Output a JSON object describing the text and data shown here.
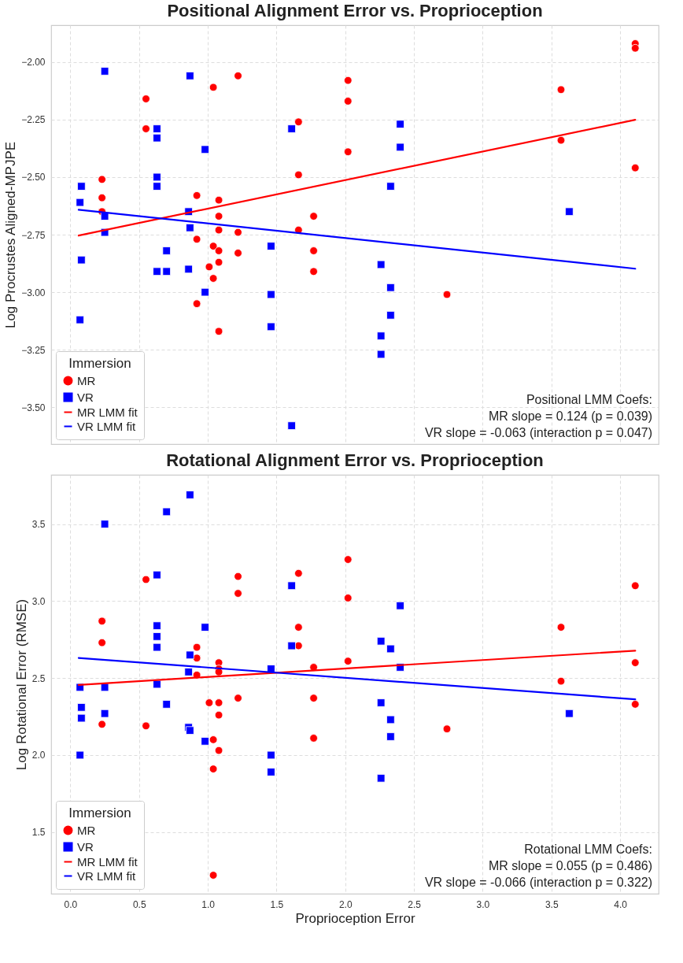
{
  "chart_data": [
    {
      "type": "scatter",
      "title": "Positional Alignment Error vs. Proprioception",
      "ylabel": "Log Procrustes Aligned-MPJPE",
      "legend_title": "Immersion",
      "legend": "bottom left",
      "grid": true,
      "tick_labels": "y",
      "xlim": [
        -0.14,
        4.28
      ],
      "ylim": [
        -3.66,
        -1.84
      ],
      "xticks": [
        0,
        0.5,
        1,
        1.5,
        2,
        2.5,
        3,
        3.5,
        4
      ],
      "yticks": [
        {
          "value": -3.5,
          "label": "−3.50"
        },
        {
          "value": -3.25,
          "label": "−3.25"
        },
        {
          "value": -3,
          "label": "−3.00"
        },
        {
          "value": -2.75,
          "label": "−2.75"
        },
        {
          "value": -2.5,
          "label": "−2.50"
        },
        {
          "value": -2.25,
          "label": "−2.25"
        },
        {
          "value": -2,
          "label": "−2.00"
        }
      ],
      "series": [
        {
          "name": "MR",
          "type": "scatter",
          "marker": "circle",
          "color": "#ff0000",
          "x": [
            1.04,
            1.22,
            0.55,
            2.02,
            2.02,
            1.66,
            0.55,
            2.02,
            1.66,
            0.23,
            0.23,
            0.23,
            0.92,
            1.08,
            1.08,
            1.77,
            1.08,
            1.22,
            1.66,
            0.92,
            1.04,
            1.08,
            1.22,
            1.77,
            1.08,
            1.01,
            1.04,
            1.77,
            0.92,
            1.08,
            4.11,
            4.11,
            3.57,
            3.57,
            4.11,
            2.74
          ],
          "values": [
            -2.11,
            -2.06,
            -2.16,
            -2.08,
            -2.17,
            -2.26,
            -2.29,
            -2.39,
            -2.49,
            -2.51,
            -2.59,
            -2.65,
            -2.58,
            -2.6,
            -2.67,
            -2.67,
            -2.73,
            -2.74,
            -2.73,
            -2.77,
            -2.8,
            -2.82,
            -2.83,
            -2.82,
            -2.87,
            -2.89,
            -2.94,
            -2.91,
            -3.05,
            -3.17,
            -1.92,
            -1.94,
            -2.12,
            -2.34,
            -2.46,
            -3.01
          ]
        },
        {
          "name": "VR",
          "type": "scatter",
          "marker": "square",
          "color": "#0000ff",
          "x": [
            0.25,
            0.87,
            0.63,
            0.63,
            1.61,
            0.98,
            0.08,
            0.63,
            0.63,
            0.07,
            0.25,
            0.86,
            0.87,
            0.25,
            0.7,
            1.46,
            0.08,
            0.63,
            0.7,
            0.86,
            0.98,
            1.46,
            0.07,
            1.46,
            1.61,
            2.4,
            2.4,
            2.33,
            3.63,
            2.26,
            2.33,
            2.33,
            2.26,
            2.26
          ],
          "values": [
            -2.04,
            -2.06,
            -2.29,
            -2.33,
            -2.29,
            -2.38,
            -2.54,
            -2.5,
            -2.54,
            -2.61,
            -2.67,
            -2.65,
            -2.72,
            -2.74,
            -2.82,
            -2.8,
            -2.86,
            -2.91,
            -2.91,
            -2.9,
            -3.0,
            -3.01,
            -3.12,
            -3.15,
            -3.58,
            -2.27,
            -2.37,
            -2.54,
            -2.65,
            -2.88,
            -2.98,
            -3.1,
            -3.19,
            -3.27
          ]
        },
        {
          "name": "MR LMM fit",
          "type": "line",
          "line_style": "solid",
          "color": "#ff0000",
          "x": [
            0.06,
            4.11
          ],
          "values": [
            -2.754,
            -2.251
          ]
        },
        {
          "name": "VR LMM fit",
          "type": "line",
          "line_style": "solid",
          "color": "#0000ff",
          "x": [
            0.06,
            4.11
          ],
          "values": [
            -2.642,
            -2.898
          ]
        }
      ],
      "annotations": [
        "Positional LMM Coefs:",
        "MR slope = 0.124 (p = 0.039)",
        "VR slope = -0.063 (interaction p = 0.047)"
      ]
    },
    {
      "type": "scatter",
      "title": "Rotational Alignment Error vs. Proprioception",
      "xlabel": "Proprioception Error",
      "ylabel": "Log Rotational Error (RMSE)",
      "legend_title": "Immersion",
      "legend": "bottom left",
      "grid": true,
      "xlim": [
        -0.14,
        4.28
      ],
      "ylim": [
        1.1,
        3.82
      ],
      "xticks": [
        {
          "value": 0,
          "label": "0.0"
        },
        {
          "value": 0.5,
          "label": "0.5"
        },
        {
          "value": 1,
          "label": "1.0"
        },
        {
          "value": 1.5,
          "label": "1.5"
        },
        {
          "value": 2,
          "label": "2.0"
        },
        {
          "value": 2.5,
          "label": "2.5"
        },
        {
          "value": 3,
          "label": "3.0"
        },
        {
          "value": 3.5,
          "label": "3.5"
        },
        {
          "value": 4,
          "label": "4.0"
        }
      ],
      "yticks": [
        1.5,
        {
          "value": 2,
          "label": "2.0"
        },
        2.5,
        {
          "value": 3,
          "label": "3.0"
        },
        3.5
      ],
      "series": [
        {
          "name": "MR",
          "type": "scatter",
          "marker": "circle",
          "color": "#ff0000",
          "x": [
            0.55,
            0.23,
            0.23,
            1.22,
            1.22,
            1.66,
            2.02,
            2.02,
            1.66,
            1.66,
            0.92,
            0.92,
            1.08,
            1.08,
            1.08,
            0.92,
            1.77,
            2.02,
            1.22,
            1.77,
            1.01,
            1.08,
            1.08,
            0.23,
            0.55,
            1.77,
            1.04,
            1.08,
            1.04,
            1.04,
            4.11,
            3.57,
            4.11,
            3.57,
            4.11,
            2.74
          ],
          "values": [
            3.14,
            2.87,
            2.73,
            3.16,
            3.05,
            3.18,
            3.27,
            3.02,
            2.83,
            2.71,
            2.7,
            2.63,
            2.6,
            2.56,
            2.54,
            2.52,
            2.57,
            2.61,
            2.37,
            2.37,
            2.34,
            2.34,
            2.26,
            2.2,
            2.19,
            2.11,
            2.1,
            2.03,
            1.91,
            1.22,
            3.1,
            2.83,
            2.6,
            2.48,
            2.33,
            2.17
          ]
        },
        {
          "name": "VR",
          "type": "scatter",
          "marker": "square",
          "color": "#0000ff",
          "x": [
            0.87,
            0.7,
            0.25,
            0.63,
            1.61,
            0.63,
            0.63,
            0.98,
            0.63,
            1.61,
            0.87,
            0.86,
            1.46,
            0.07,
            0.25,
            0.63,
            0.7,
            0.08,
            0.08,
            0.25,
            0.86,
            0.87,
            0.98,
            0.07,
            1.46,
            1.46,
            2.4,
            2.26,
            2.33,
            2.4,
            2.26,
            2.33,
            2.33,
            2.26,
            3.63
          ],
          "values": [
            3.69,
            3.58,
            3.5,
            3.17,
            3.1,
            2.84,
            2.77,
            2.83,
            2.7,
            2.71,
            2.65,
            2.54,
            2.56,
            2.44,
            2.44,
            2.46,
            2.33,
            2.31,
            2.24,
            2.27,
            2.18,
            2.16,
            2.09,
            2.0,
            2.0,
            1.89,
            2.97,
            2.74,
            2.69,
            2.57,
            2.34,
            2.23,
            2.12,
            1.85,
            2.27
          ]
        },
        {
          "name": "MR LMM fit",
          "type": "line",
          "line_style": "solid",
          "color": "#ff0000",
          "x": [
            0.06,
            4.11
          ],
          "values": [
            2.456,
            2.678
          ]
        },
        {
          "name": "VR LMM fit",
          "type": "line",
          "line_style": "solid",
          "color": "#0000ff",
          "x": [
            0.06,
            4.11
          ],
          "values": [
            2.631,
            2.362
          ]
        }
      ],
      "annotations": [
        "Rotational LMM Coefs:",
        "MR slope = 0.055 (p = 0.486)",
        "VR slope = -0.066 (interaction p = 0.322)"
      ]
    }
  ]
}
